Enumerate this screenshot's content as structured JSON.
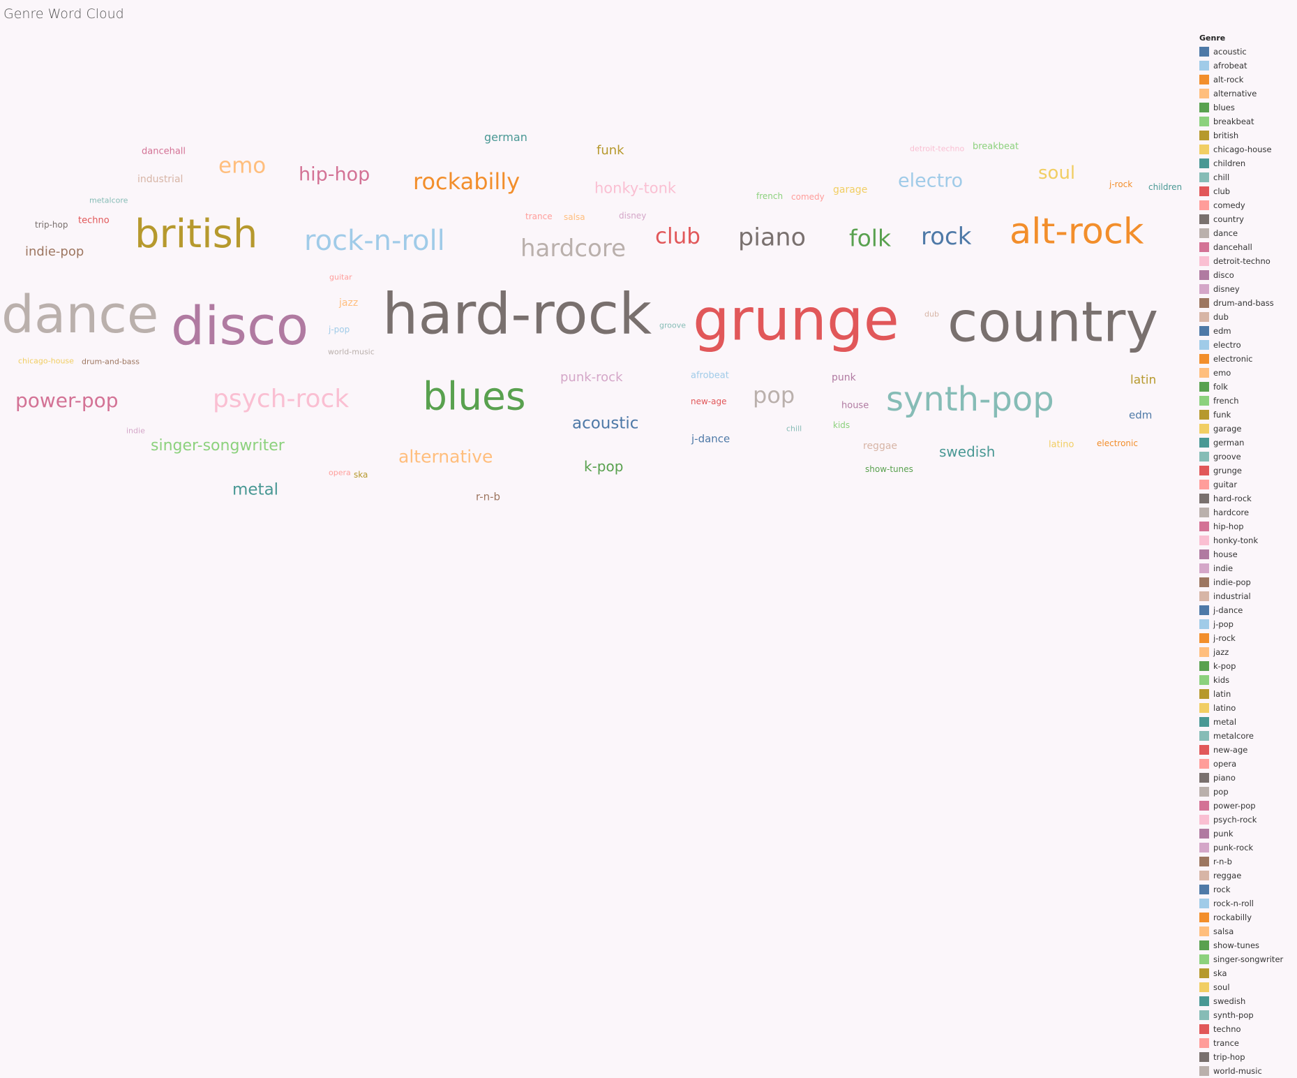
{
  "title": "Genre Word Cloud",
  "legend_title": "Genre",
  "chart_data": {
    "type": "wordcloud",
    "title": "Genre Word Cloud",
    "legend_title": "Genre",
    "legend_placement": "right",
    "genres": [
      {
        "name": "acoustic",
        "color": "#4e79a7",
        "rank": 45
      },
      {
        "name": "afrobeat",
        "color": "#a0cbe8",
        "rank": 22
      },
      {
        "name": "alt-rock",
        "color": "#f28e2b",
        "rank": 75
      },
      {
        "name": "alternative",
        "color": "#ffbe7d",
        "rank": 48
      },
      {
        "name": "blues",
        "color": "#59a14f",
        "rank": 78
      },
      {
        "name": "breakbeat",
        "color": "#8cd17d",
        "rank": 20
      },
      {
        "name": "british",
        "color": "#b6992d",
        "rank": 79
      },
      {
        "name": "chicago-house",
        "color": "#f1ce63",
        "rank": 10
      },
      {
        "name": "children",
        "color": "#499894",
        "rank": 13
      },
      {
        "name": "chill",
        "color": "#86bcb6",
        "rank": 11
      },
      {
        "name": "club",
        "color": "#e15759",
        "rank": 57
      },
      {
        "name": "comedy",
        "color": "#ff9d9a",
        "rank": 15
      },
      {
        "name": "country",
        "color": "#79706e",
        "rank": 94
      },
      {
        "name": "dance",
        "color": "#bab0ac",
        "rank": 91
      },
      {
        "name": "dancehall",
        "color": "#d37295",
        "rank": 23
      },
      {
        "name": "detroit-techno",
        "color": "#fabfd2",
        "rank": 9
      },
      {
        "name": "disco",
        "color": "#b07aa1",
        "rank": 92
      },
      {
        "name": "disney",
        "color": "#d4a6c8",
        "rank": 14
      },
      {
        "name": "drum-and-bass",
        "color": "#9d7660",
        "rank": 12
      },
      {
        "name": "dub",
        "color": "#d7b5a6",
        "rank": 8
      },
      {
        "name": "edm",
        "color": "#4e79a7",
        "rank": 29
      },
      {
        "name": "electro",
        "color": "#a0cbe8",
        "rank": 51
      },
      {
        "name": "electronic",
        "color": "#f28e2b",
        "rank": 18
      },
      {
        "name": "emo",
        "color": "#ffbe7d",
        "rank": 56
      },
      {
        "name": "folk",
        "color": "#59a14f",
        "rank": 59
      },
      {
        "name": "french",
        "color": "#8cd17d",
        "rank": 14
      },
      {
        "name": "funk",
        "color": "#b6992d",
        "rank": 37
      },
      {
        "name": "garage",
        "color": "#f1ce63",
        "rank": 24
      },
      {
        "name": "german",
        "color": "#499894",
        "rank": 31
      },
      {
        "name": "groove",
        "color": "#86bcb6",
        "rank": 10
      },
      {
        "name": "grunge",
        "color": "#e15759",
        "rank": 96
      },
      {
        "name": "guitar",
        "color": "#ff9d9a",
        "rank": 9
      },
      {
        "name": "hard-rock",
        "color": "#79706e",
        "rank": 95
      },
      {
        "name": "hardcore",
        "color": "#bab0ac",
        "rank": 60
      },
      {
        "name": "hip-hop",
        "color": "#d37295",
        "rank": 52
      },
      {
        "name": "honky-tonk",
        "color": "#fabfd2",
        "rank": 42
      },
      {
        "name": "house",
        "color": "#b07aa1",
        "rank": 20
      },
      {
        "name": "indie",
        "color": "#d4a6c8",
        "rank": 9
      },
      {
        "name": "indie-pop",
        "color": "#9d7660",
        "rank": 36
      },
      {
        "name": "industrial",
        "color": "#d7b5a6",
        "rank": 27
      },
      {
        "name": "j-dance",
        "color": "#4e79a7",
        "rank": 28
      },
      {
        "name": "j-pop",
        "color": "#a0cbe8",
        "rank": 17
      },
      {
        "name": "j-rock",
        "color": "#f28e2b",
        "rank": 15
      },
      {
        "name": "jazz",
        "color": "#ffbe7d",
        "rank": 26
      },
      {
        "name": "k-pop",
        "color": "#59a14f",
        "rank": 40
      },
      {
        "name": "kids",
        "color": "#8cd17d",
        "rank": 13
      },
      {
        "name": "latin",
        "color": "#b6992d",
        "rank": 33
      },
      {
        "name": "latino",
        "color": "#f1ce63",
        "rank": 21
      },
      {
        "name": "metal",
        "color": "#499894",
        "rank": 46
      },
      {
        "name": "metalcore",
        "color": "#86bcb6",
        "rank": 10
      },
      {
        "name": "new-age",
        "color": "#e15759",
        "rank": 19
      },
      {
        "name": "opera",
        "color": "#ff9d9a",
        "rank": 10
      },
      {
        "name": "piano",
        "color": "#79706e",
        "rank": 61
      },
      {
        "name": "pop",
        "color": "#bab0ac",
        "rank": 58
      },
      {
        "name": "power-pop",
        "color": "#d37295",
        "rank": 53
      },
      {
        "name": "psych-rock",
        "color": "#fabfd2",
        "rank": 62
      },
      {
        "name": "punk",
        "color": "#b07aa1",
        "rank": 27
      },
      {
        "name": "punk-rock",
        "color": "#d4a6c8",
        "rank": 36
      },
      {
        "name": "r-n-b",
        "color": "#9d7660",
        "rank": 30
      },
      {
        "name": "reggae",
        "color": "#d7b5a6",
        "rank": 25
      },
      {
        "name": "rock",
        "color": "#4e79a7",
        "rank": 60
      },
      {
        "name": "rock-n-roll",
        "color": "#a0cbe8",
        "rank": 66
      },
      {
        "name": "rockabilly",
        "color": "#f28e2b",
        "rank": 58
      },
      {
        "name": "salsa",
        "color": "#ffbe7d",
        "rank": 14
      },
      {
        "name": "show-tunes",
        "color": "#59a14f",
        "rank": 18
      },
      {
        "name": "singer-songwriter",
        "color": "#8cd17d",
        "rank": 44
      },
      {
        "name": "ska",
        "color": "#b6992d",
        "rank": 13
      },
      {
        "name": "soul",
        "color": "#f1ce63",
        "rank": 50
      },
      {
        "name": "swedish",
        "color": "#499894",
        "rank": 41
      },
      {
        "name": "synth-pop",
        "color": "#86bcb6",
        "rank": 73
      },
      {
        "name": "techno",
        "color": "#e15759",
        "rank": 21
      },
      {
        "name": "trance",
        "color": "#ff9d9a",
        "rank": 14
      },
      {
        "name": "trip-hop",
        "color": "#79706e",
        "rank": 14
      },
      {
        "name": "world-music",
        "color": "#bab0ac",
        "rank": 11
      }
    ]
  }
}
